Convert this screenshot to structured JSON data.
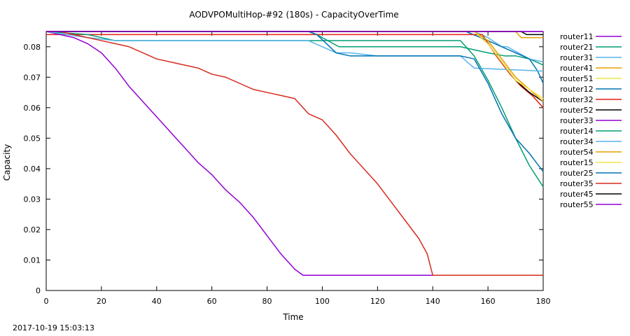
{
  "chart_data": {
    "type": "line",
    "title": "AODVPOMultiHop-#92 (180s) - CapacityOverTime",
    "xlabel": "Time",
    "ylabel": "Capacity",
    "xlim": [
      0,
      180
    ],
    "ylim": [
      0,
      0.085
    ],
    "x_ticks": [
      0,
      20,
      40,
      60,
      80,
      100,
      120,
      140,
      160,
      180
    ],
    "y_ticks": [
      0,
      0.01,
      0.02,
      0.03,
      0.04,
      0.05,
      0.06,
      0.07,
      0.08
    ],
    "x_tick_labels": [
      "0",
      "20",
      "40",
      "60",
      "80",
      "100",
      "120",
      "140",
      "160",
      "180"
    ],
    "y_tick_labels": [
      "0",
      "0.01",
      "0.02",
      "0.03",
      "0.04",
      "0.05",
      "0.06",
      "0.07",
      "0.08"
    ],
    "legend_position": "outside-right",
    "series": [
      {
        "name": "router11",
        "color": "#9400d3",
        "x": [
          0,
          180
        ],
        "y": [
          0.085,
          0.085
        ]
      },
      {
        "name": "router21",
        "color": "#009e73",
        "x": [
          0,
          95,
          98,
          106,
          111,
          150,
          155,
          160,
          166,
          170,
          175,
          180
        ],
        "y": [
          0.085,
          0.085,
          0.084,
          0.08,
          0.08,
          0.08,
          0.079,
          0.078,
          0.077,
          0.077,
          0.076,
          0.074
        ]
      },
      {
        "name": "router31",
        "color": "#56b4e9",
        "x": [
          0,
          155,
          160,
          165,
          167,
          175,
          180
        ],
        "y": [
          0.085,
          0.085,
          0.083,
          0.08,
          0.08,
          0.076,
          0.075
        ]
      },
      {
        "name": "router41",
        "color": "#e69f00",
        "x": [
          0,
          170,
          172,
          180
        ],
        "y": [
          0.085,
          0.085,
          0.083,
          0.083
        ]
      },
      {
        "name": "router51",
        "color": "#f0e442",
        "x": [
          0,
          155,
          160,
          165,
          170,
          175,
          180
        ],
        "y": [
          0.085,
          0.085,
          0.082,
          0.076,
          0.07,
          0.066,
          0.063
        ]
      },
      {
        "name": "router12",
        "color": "#0072b2",
        "x": [
          0,
          152,
          160,
          165,
          170,
          175,
          178,
          180
        ],
        "y": [
          0.085,
          0.085,
          0.082,
          0.08,
          0.078,
          0.076,
          0.072,
          0.068
        ]
      },
      {
        "name": "router32",
        "color": "#e51e10",
        "x": [
          0,
          158,
          163,
          168,
          172,
          176,
          180
        ],
        "y": [
          0.084,
          0.084,
          0.077,
          0.071,
          0.067,
          0.064,
          0.06
        ]
      },
      {
        "name": "router52",
        "color": "#000000",
        "x": [
          0,
          155,
          160,
          165,
          170,
          175,
          180
        ],
        "y": [
          0.085,
          0.085,
          0.081,
          0.075,
          0.069,
          0.065,
          0.062
        ]
      },
      {
        "name": "router33",
        "color": "#9400d3",
        "x": [
          0,
          5,
          10,
          15,
          20,
          25,
          30,
          35,
          40,
          45,
          50,
          55,
          60,
          65,
          70,
          75,
          80,
          85,
          90,
          93,
          180
        ],
        "y": [
          0.085,
          0.084,
          0.083,
          0.081,
          0.078,
          0.073,
          0.067,
          0.062,
          0.057,
          0.052,
          0.047,
          0.042,
          0.038,
          0.033,
          0.029,
          0.024,
          0.018,
          0.012,
          0.007,
          0.005,
          0.005
        ]
      },
      {
        "name": "router14",
        "color": "#009e73",
        "x": [
          0,
          15,
          25,
          100,
          150,
          155,
          160,
          165,
          170,
          175,
          180
        ],
        "y": [
          0.085,
          0.084,
          0.082,
          0.082,
          0.082,
          0.077,
          0.069,
          0.06,
          0.05,
          0.041,
          0.034
        ]
      },
      {
        "name": "router34",
        "color": "#56b4e9",
        "x": [
          0,
          15,
          25,
          95,
          100,
          105,
          110,
          120,
          150,
          155,
          180
        ],
        "y": [
          0.085,
          0.083,
          0.082,
          0.082,
          0.08,
          0.078,
          0.078,
          0.077,
          0.077,
          0.073,
          0.072
        ]
      },
      {
        "name": "router54",
        "color": "#e69f00",
        "x": [
          0,
          155,
          160,
          165,
          170,
          175,
          180
        ],
        "y": [
          0.085,
          0.085,
          0.082,
          0.076,
          0.07,
          0.066,
          0.062
        ]
      },
      {
        "name": "router15",
        "color": "#f0e442",
        "x": [
          0,
          155,
          160,
          165,
          170,
          175,
          180
        ],
        "y": [
          0.085,
          0.085,
          0.081,
          0.075,
          0.069,
          0.066,
          0.063
        ]
      },
      {
        "name": "router25",
        "color": "#0072b2",
        "x": [
          0,
          95,
          98,
          105,
          110,
          150,
          155,
          160,
          165,
          170,
          175,
          180
        ],
        "y": [
          0.085,
          0.085,
          0.084,
          0.078,
          0.077,
          0.077,
          0.076,
          0.068,
          0.058,
          0.05,
          0.045,
          0.039
        ]
      },
      {
        "name": "router35",
        "color": "#d62c1e",
        "x": [
          0,
          5,
          10,
          15,
          20,
          25,
          30,
          35,
          40,
          45,
          50,
          55,
          60,
          65,
          70,
          75,
          80,
          85,
          90,
          95,
          100,
          105,
          110,
          115,
          120,
          125,
          130,
          135,
          138,
          140,
          180
        ],
        "y": [
          0.085,
          0.085,
          0.084,
          0.083,
          0.082,
          0.081,
          0.08,
          0.078,
          0.076,
          0.075,
          0.074,
          0.073,
          0.071,
          0.07,
          0.068,
          0.066,
          0.065,
          0.064,
          0.063,
          0.058,
          0.056,
          0.051,
          0.045,
          0.04,
          0.035,
          0.029,
          0.023,
          0.017,
          0.012,
          0.005,
          0.005
        ]
      },
      {
        "name": "router45",
        "color": "#000000",
        "x": [
          0,
          172,
          174,
          180
        ],
        "y": [
          0.085,
          0.085,
          0.084,
          0.084
        ]
      },
      {
        "name": "router55",
        "color": "#9400d3",
        "x": [
          0,
          180
        ],
        "y": [
          0.085,
          0.085
        ]
      }
    ]
  },
  "footer": {
    "timestamp": "2017-10-19 15:03:13"
  }
}
